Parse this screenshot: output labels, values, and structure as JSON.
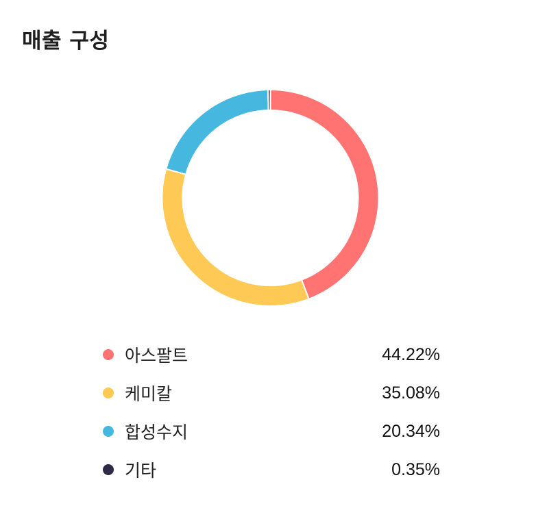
{
  "header": {
    "title": "매출 구성"
  },
  "chart_data": {
    "type": "pie",
    "title": "매출 구성",
    "donut": true,
    "start_angle_deg": 0,
    "direction": "clockwise",
    "slices": [
      {
        "label": "아스팔트",
        "value": 44.22,
        "display": "44.22%",
        "color": "#FF7472"
      },
      {
        "label": "케미칼",
        "value": 35.08,
        "display": "35.08%",
        "color": "#FEC955"
      },
      {
        "label": "합성수지",
        "value": 20.34,
        "display": "20.34%",
        "color": "#46B8E0"
      },
      {
        "label": "기타",
        "value": 0.35,
        "display": "0.35%",
        "color": "#2E2B47"
      }
    ],
    "legend": {
      "position": "bottom"
    }
  }
}
